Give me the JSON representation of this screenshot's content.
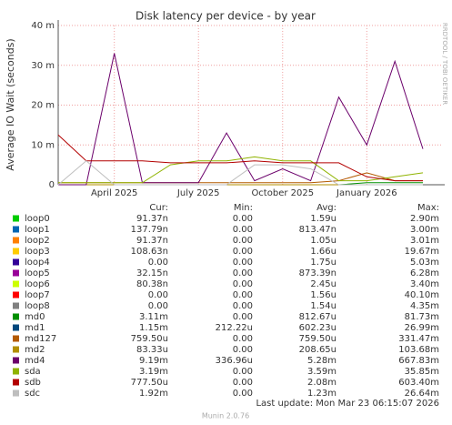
{
  "chart_data": {
    "type": "line",
    "title": "Disk latency per device - by year",
    "y_label": "Average IO Wait (seconds)",
    "side_label": "RRDTOOL / TOBI OETIKER",
    "x": [
      "2025-02",
      "2025-03",
      "2025-04",
      "2025-05",
      "2025-06",
      "2025-07",
      "2025-08",
      "2025-09",
      "2025-10",
      "2025-11",
      "2025-12",
      "2026-01",
      "2026-02",
      "2026-03"
    ],
    "xticks": [
      {
        "value": "2025-04",
        "label": "April 2025"
      },
      {
        "value": "2025-07",
        "label": "July 2025"
      },
      {
        "value": "2025-10",
        "label": "October 2025"
      },
      {
        "value": "2026-01",
        "label": "January 2026"
      }
    ],
    "ylim": [
      0,
      40
    ],
    "yticks": [
      0,
      {
        "value": 10,
        "label": "10 m"
      },
      {
        "value": 20,
        "label": "20 m"
      },
      {
        "value": 30,
        "label": "30 m"
      },
      {
        "value": 40,
        "label": "40 m"
      }
    ],
    "grid": true,
    "stat_headers": [
      "Cur:",
      "Min:",
      "Avg:",
      "Max:"
    ],
    "series": [
      {
        "name": "loop0",
        "color": "#00cc00",
        "values": [
          0,
          0,
          0,
          0,
          0,
          0,
          0,
          0,
          0,
          0,
          0,
          0,
          0,
          0
        ],
        "stats": [
          "91.37n",
          "0.00",
          "1.59u",
          "2.90m"
        ]
      },
      {
        "name": "loop1",
        "color": "#0066b3",
        "values": [
          0,
          0,
          0,
          0,
          0,
          0,
          0,
          0,
          0,
          0,
          0,
          0,
          0,
          0
        ],
        "stats": [
          "137.79n",
          "0.00",
          "813.47n",
          "3.00m"
        ]
      },
      {
        "name": "loop2",
        "color": "#ff8000",
        "values": [
          0,
          0,
          0,
          0,
          0,
          0,
          0,
          0,
          0,
          0,
          0,
          0,
          0,
          0
        ],
        "stats": [
          "91.37n",
          "0.00",
          "1.05u",
          "3.01m"
        ]
      },
      {
        "name": "loop3",
        "color": "#ffcc00",
        "values": [
          0,
          0,
          0,
          0,
          0,
          0,
          0,
          0,
          0,
          0,
          0,
          0,
          0,
          0
        ],
        "stats": [
          "108.63n",
          "0.00",
          "1.66u",
          "19.67m"
        ]
      },
      {
        "name": "loop4",
        "color": "#330099",
        "values": [
          0,
          0,
          0,
          0,
          0,
          0,
          0,
          0,
          0,
          0,
          0,
          0,
          0,
          0
        ],
        "stats": [
          "0.00",
          "0.00",
          "1.75u",
          "5.03m"
        ]
      },
      {
        "name": "loop5",
        "color": "#990099",
        "values": [
          0,
          0,
          0,
          0,
          0,
          0,
          0,
          0,
          0,
          0,
          0,
          0,
          0,
          0
        ],
        "stats": [
          "32.15n",
          "0.00",
          "873.39n",
          "6.28m"
        ]
      },
      {
        "name": "loop6",
        "color": "#ccff00",
        "values": [
          0,
          0,
          0,
          0,
          0,
          0,
          0,
          0,
          0,
          0,
          0,
          0,
          0,
          0
        ],
        "stats": [
          "80.38n",
          "0.00",
          "2.45u",
          "3.40m"
        ]
      },
      {
        "name": "loop7",
        "color": "#ff0000",
        "values": [
          0,
          0,
          0,
          0,
          0,
          0,
          0,
          0,
          0,
          0,
          0,
          0,
          0,
          0
        ],
        "stats": [
          "0.00",
          "0.00",
          "1.56u",
          "40.10m"
        ]
      },
      {
        "name": "loop8",
        "color": "#808080",
        "values": [
          0,
          0,
          0,
          0,
          0,
          0,
          0,
          0,
          0,
          0,
          0,
          0,
          0,
          0
        ],
        "stats": [
          "0.00",
          "0.00",
          "1.54u",
          "4.35m"
        ]
      },
      {
        "name": "md0",
        "color": "#008f00",
        "values": [
          0,
          0,
          0,
          0,
          0,
          0,
          0,
          0,
          0,
          0,
          0,
          0.5,
          0.5,
          0.5
        ],
        "stats": [
          "3.11m",
          "0.00",
          "812.67u",
          "81.73m"
        ]
      },
      {
        "name": "md1",
        "color": "#00487d",
        "values": [
          0,
          0,
          0,
          0,
          0,
          0,
          0,
          0,
          0,
          0,
          0,
          0,
          0,
          0
        ],
        "stats": [
          "1.15m",
          "212.22u",
          "602.23u",
          "26.99m"
        ]
      },
      {
        "name": "md127",
        "color": "#b35a00",
        "values": [
          0.5,
          0.5,
          0.5,
          0.5,
          0.5,
          0.5,
          0.5,
          0.5,
          0.5,
          0.5,
          1,
          3,
          1,
          1
        ],
        "stats": [
          "759.50u",
          "0.00",
          "759.50u",
          "331.47m"
        ]
      },
      {
        "name": "md2",
        "color": "#b38f00",
        "values": [
          0,
          0,
          0,
          0,
          0,
          0,
          0,
          0,
          0,
          0,
          0,
          0,
          0,
          0
        ],
        "stats": [
          "83.33u",
          "0.00",
          "208.65u",
          "103.68m"
        ]
      },
      {
        "name": "md4",
        "color": "#6b006b",
        "values": [
          0,
          0,
          33,
          0.5,
          0.5,
          0.5,
          13,
          1,
          4,
          1,
          22,
          10,
          31,
          9
        ],
        "stats": [
          "9.19m",
          "336.96u",
          "5.28m",
          "667.83m"
        ]
      },
      {
        "name": "sda",
        "color": "#8fb300",
        "values": [
          0.5,
          0.5,
          0.5,
          0.5,
          5,
          6,
          6,
          7,
          6,
          6,
          1,
          1,
          2,
          3
        ],
        "stats": [
          "3.19m",
          "0.00",
          "3.59m",
          "35.85m"
        ]
      },
      {
        "name": "sdb",
        "color": "#b30000",
        "values": [
          12.5,
          6,
          6,
          6,
          5.5,
          5.5,
          5.5,
          6,
          5.5,
          5.5,
          5.5,
          2,
          1,
          1
        ],
        "stats": [
          "777.50u",
          "0.00",
          "2.08m",
          "603.40m"
        ]
      },
      {
        "name": "sdc",
        "color": "#bebebe",
        "values": [
          0,
          6,
          0,
          0,
          0,
          0,
          0,
          5,
          5,
          4,
          0,
          0,
          0,
          0
        ],
        "stats": [
          "1.92m",
          "0.00",
          "1.23m",
          "26.64m"
        ]
      }
    ],
    "last_update": "Last update: Mon Mar 23 06:15:07 2026",
    "footer": "Munin 2.0.76"
  }
}
